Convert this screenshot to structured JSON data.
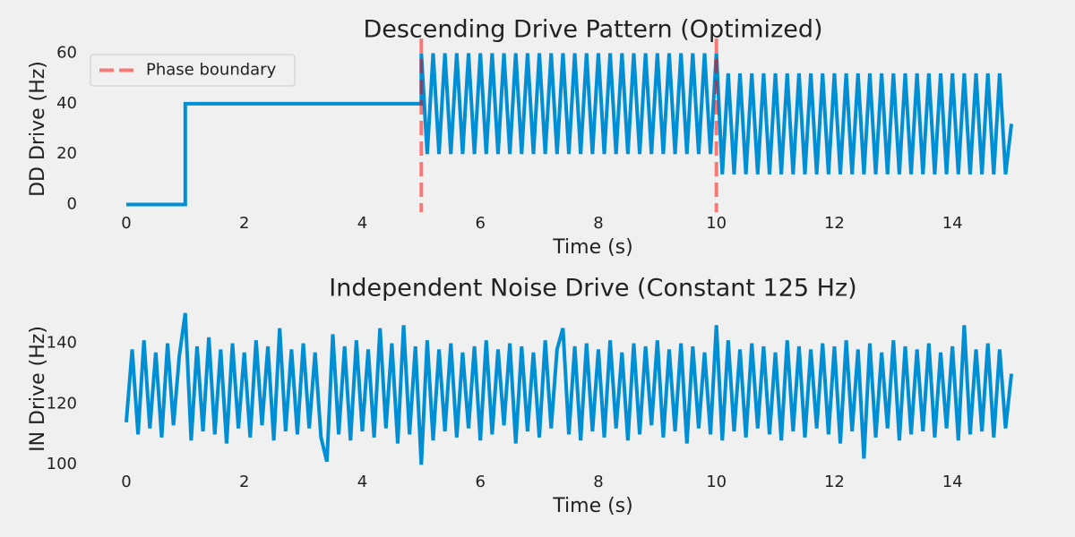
{
  "chart_data": [
    {
      "type": "line",
      "title": "Descending Drive Pattern (Optimized)",
      "x_label": "Time (s)",
      "y_label": "DD Drive (Hz)",
      "xlim": [
        -0.5,
        15.5
      ],
      "xticks": [
        0,
        2,
        4,
        6,
        8,
        10,
        12,
        14
      ],
      "ylim": [
        -3,
        63
      ],
      "yticks": [
        0,
        20,
        40,
        60
      ],
      "grid": false,
      "legend": "upper left",
      "vlines": {
        "name": "Phase boundary",
        "color": "#ff0000",
        "x": [
          5,
          10
        ]
      },
      "series": [
        {
          "color": "#008fd5",
          "x": [
            0,
            1,
            1,
            5,
            5.0,
            5.1,
            5.2,
            5.3,
            5.4,
            5.5,
            5.6,
            5.7,
            5.8,
            5.9,
            6.0,
            6.1,
            6.2,
            6.3,
            6.4,
            6.5,
            6.6,
            6.7,
            6.8,
            6.9,
            7.0,
            7.1,
            7.2,
            7.3,
            7.4,
            7.5,
            7.6,
            7.7,
            7.8,
            7.9,
            8.0,
            8.1,
            8.2,
            8.3,
            8.4,
            8.5,
            8.6,
            8.7,
            8.8,
            8.9,
            9.0,
            9.1,
            9.2,
            9.3,
            9.4,
            9.5,
            9.6,
            9.7,
            9.8,
            9.9,
            10.0,
            10.1,
            10.2,
            10.3,
            10.4,
            10.5,
            10.6,
            10.7,
            10.8,
            10.9,
            11.0,
            11.1,
            11.2,
            11.3,
            11.4,
            11.5,
            11.6,
            11.7,
            11.8,
            11.9,
            12.0,
            12.1,
            12.2,
            12.3,
            12.4,
            12.5,
            12.6,
            12.7,
            12.8,
            12.9,
            13.0,
            13.1,
            13.2,
            13.3,
            13.4,
            13.5,
            13.6,
            13.7,
            13.8,
            13.9,
            14.0,
            14.1,
            14.2,
            14.3,
            14.4,
            14.5,
            14.6,
            14.7,
            14.8,
            14.9,
            15.0
          ],
          "values": [
            0,
            0,
            40,
            40,
            60,
            20,
            60,
            20,
            60,
            20,
            60,
            20,
            60,
            20,
            60,
            20,
            60,
            20,
            60,
            20,
            60,
            20,
            60,
            20,
            60,
            20,
            60,
            20,
            60,
            20,
            60,
            20,
            60,
            20,
            60,
            20,
            60,
            20,
            60,
            20,
            60,
            20,
            60,
            20,
            60,
            20,
            60,
            20,
            60,
            20,
            60,
            20,
            60,
            20,
            60,
            12,
            52,
            12,
            52,
            12,
            52,
            12,
            52,
            12,
            52,
            12,
            52,
            12,
            52,
            12,
            52,
            12,
            52,
            12,
            52,
            12,
            52,
            12,
            52,
            12,
            52,
            12,
            52,
            12,
            52,
            12,
            52,
            12,
            52,
            12,
            52,
            12,
            52,
            12,
            52,
            12,
            52,
            12,
            52,
            12,
            52,
            12,
            52,
            12,
            32
          ]
        }
      ]
    },
    {
      "type": "line",
      "title": "Independent Noise Drive (Constant 125 Hz)",
      "x_label": "Time (s)",
      "y_label": "IN Drive (Hz)",
      "xlim": [
        -0.5,
        15.5
      ],
      "xticks": [
        0,
        2,
        4,
        6,
        8,
        10,
        12,
        14
      ],
      "ylim": [
        98,
        152
      ],
      "yticks": [
        100,
        120,
        140
      ],
      "grid": false,
      "series": [
        {
          "color": "#008fd5",
          "x": [
            0,
            0.1,
            0.2,
            0.3,
            0.4,
            0.5,
            0.6,
            0.7,
            0.8,
            0.9,
            1.0,
            1.1,
            1.2,
            1.3,
            1.4,
            1.5,
            1.6,
            1.7,
            1.8,
            1.9,
            2.0,
            2.1,
            2.2,
            2.3,
            2.4,
            2.5,
            2.6,
            2.7,
            2.8,
            2.9,
            3.0,
            3.1,
            3.2,
            3.3,
            3.4,
            3.5,
            3.6,
            3.7,
            3.8,
            3.9,
            4.0,
            4.1,
            4.2,
            4.3,
            4.4,
            4.5,
            4.6,
            4.7,
            4.8,
            4.9,
            5.0,
            5.1,
            5.2,
            5.3,
            5.4,
            5.5,
            5.6,
            5.7,
            5.8,
            5.9,
            6.0,
            6.1,
            6.2,
            6.3,
            6.4,
            6.5,
            6.6,
            6.7,
            6.8,
            6.9,
            7.0,
            7.1,
            7.2,
            7.3,
            7.4,
            7.5,
            7.6,
            7.7,
            7.8,
            7.9,
            8.0,
            8.1,
            8.2,
            8.3,
            8.4,
            8.5,
            8.6,
            8.7,
            8.8,
            8.9,
            9.0,
            9.1,
            9.2,
            9.3,
            9.4,
            9.5,
            9.6,
            9.7,
            9.8,
            9.9,
            10.0,
            10.1,
            10.2,
            10.3,
            10.4,
            10.5,
            10.6,
            10.7,
            10.8,
            10.9,
            11.0,
            11.1,
            11.2,
            11.3,
            11.4,
            11.5,
            11.6,
            11.7,
            11.8,
            11.9,
            12.0,
            12.1,
            12.2,
            12.3,
            12.4,
            12.5,
            12.6,
            12.7,
            12.8,
            12.9,
            13.0,
            13.1,
            13.2,
            13.3,
            13.4,
            13.5,
            13.6,
            13.7,
            13.8,
            13.9,
            14.0,
            14.1,
            14.2,
            14.3,
            14.4,
            14.5,
            14.6,
            14.7,
            14.8,
            14.9,
            15.0
          ],
          "values": [
            114,
            138,
            110,
            141,
            112,
            137,
            109,
            140,
            113,
            136,
            150,
            108,
            139,
            111,
            142,
            110,
            138,
            107,
            140,
            112,
            137,
            109,
            141,
            113,
            139,
            108,
            145,
            111,
            138,
            110,
            140,
            112,
            137,
            109,
            101,
            143,
            110,
            139,
            108,
            141,
            111,
            138,
            109,
            145,
            112,
            140,
            107,
            146,
            110,
            139,
            100,
            141,
            108,
            138,
            111,
            140,
            109,
            137,
            112,
            139,
            108,
            141,
            110,
            138,
            113,
            140,
            107,
            139,
            111,
            137,
            109,
            141,
            112,
            138,
            145,
            110,
            139,
            108,
            140,
            111,
            138,
            109,
            141,
            112,
            137,
            108,
            140,
            110,
            139,
            113,
            141,
            109,
            138,
            111,
            140,
            107,
            139,
            112,
            137,
            110,
            146,
            108,
            141,
            111,
            138,
            109,
            140,
            112,
            139,
            110,
            137,
            108,
            141,
            111,
            139,
            109,
            138,
            112,
            140,
            110,
            139,
            107,
            141,
            111,
            138,
            102,
            140,
            109,
            137,
            112,
            141,
            108,
            139,
            110,
            138,
            111,
            140,
            109,
            137,
            112,
            139,
            108,
            146,
            110,
            138,
            111,
            140,
            109,
            138,
            112,
            130
          ]
        }
      ]
    }
  ]
}
